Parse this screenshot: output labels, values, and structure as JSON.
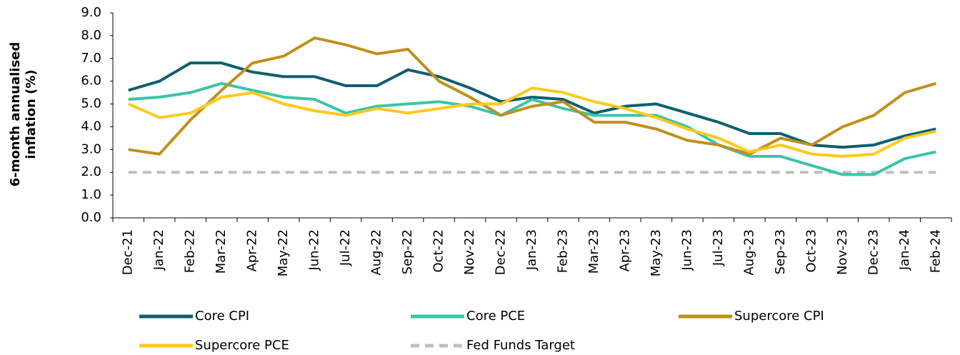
{
  "chart_data": {
    "type": "line",
    "ylabel": [
      "6-month annualised",
      "inflation (%)"
    ],
    "categories": [
      "Dec-21",
      "Jan-22",
      "Feb-22",
      "Mar-22",
      "Apr-22",
      "May-22",
      "Jun-22",
      "Jul-22",
      "Aug-22",
      "Sep-22",
      "Oct-22",
      "Nov-22",
      "Dec-22",
      "Jan-23",
      "Feb-23",
      "Mar-23",
      "Apr-23",
      "May-23",
      "Jun-23",
      "Jul-23",
      "Aug-23",
      "Sep-23",
      "Oct-23",
      "Nov-23",
      "Dec-23",
      "Jan-24",
      "Feb-24"
    ],
    "series": [
      {
        "name": "Core CPI",
        "color": "#0f5f6e",
        "values": [
          5.6,
          6.0,
          6.8,
          6.8,
          6.4,
          6.2,
          6.2,
          5.8,
          5.8,
          6.5,
          6.2,
          5.7,
          5.1,
          5.3,
          5.2,
          4.6,
          4.9,
          5.0,
          4.6,
          4.2,
          3.7,
          3.7,
          3.2,
          3.1,
          3.2,
          3.6,
          3.9
        ]
      },
      {
        "name": "Core PCE",
        "color": "#3cc4a6",
        "values": [
          5.2,
          5.3,
          5.5,
          5.9,
          5.6,
          5.3,
          5.2,
          4.6,
          4.9,
          5.0,
          5.1,
          4.9,
          4.5,
          5.2,
          4.8,
          4.5,
          4.5,
          4.5,
          4.0,
          3.2,
          2.7,
          2.7,
          2.3,
          1.9,
          1.9,
          2.6,
          2.9
        ]
      },
      {
        "name": "Supercore CPI",
        "color": "#c0901c",
        "values": [
          3.0,
          2.8,
          4.3,
          5.6,
          6.8,
          7.1,
          7.9,
          7.6,
          7.2,
          7.4,
          6.0,
          5.3,
          4.5,
          4.9,
          5.1,
          4.2,
          4.2,
          3.9,
          3.4,
          3.2,
          2.8,
          3.5,
          3.2,
          4.0,
          4.5,
          5.5,
          5.9
        ]
      },
      {
        "name": "Supercore PCE",
        "color": "#ffc81e",
        "values": [
          5.0,
          4.4,
          4.6,
          5.3,
          5.5,
          5.0,
          4.7,
          4.5,
          4.8,
          4.6,
          4.8,
          5.0,
          5.0,
          5.7,
          5.5,
          5.1,
          4.8,
          4.4,
          3.9,
          3.5,
          2.9,
          3.2,
          2.8,
          2.7,
          2.8,
          3.5,
          3.8
        ]
      },
      {
        "name": "Fed Funds Target",
        "color": "#bfbfbf",
        "dashed": true,
        "values": [
          2,
          2,
          2,
          2,
          2,
          2,
          2,
          2,
          2,
          2,
          2,
          2,
          2,
          2,
          2,
          2,
          2,
          2,
          2,
          2,
          2,
          2,
          2,
          2,
          2,
          2,
          2
        ]
      }
    ],
    "ylim": [
      0,
      9
    ],
    "yticks": [
      {
        "value": 0,
        "label": "0.0"
      },
      {
        "value": 1,
        "label": "1.0"
      },
      {
        "value": 2,
        "label": "2.0"
      },
      {
        "value": 3,
        "label": "3.0"
      },
      {
        "value": 4,
        "label": "4.0"
      },
      {
        "value": 5,
        "label": "5.0"
      },
      {
        "value": 6,
        "label": "6.0"
      },
      {
        "value": 7,
        "label": "7.0"
      },
      {
        "value": 8,
        "label": "8.0"
      },
      {
        "value": 9,
        "label": "9.0"
      }
    ]
  }
}
